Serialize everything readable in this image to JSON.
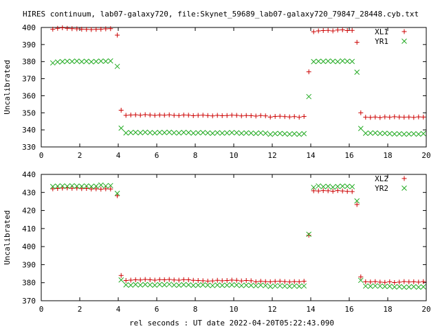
{
  "title": "HIRES continuum, lab07-galaxy720, file:Skynet_59689_lab07-galaxy720_79847_28448.cyb.txt",
  "xlabel": "rel seconds : UT date 2022-04-20T05:22:43.090",
  "colors": {
    "xl": "#cc0000",
    "yr": "#22aa22"
  },
  "chart_data": [
    {
      "type": "scatter",
      "ylabel": "Uncalibrated",
      "xlim": [
        0,
        20
      ],
      "ylim": [
        330,
        400
      ],
      "xticks": [
        0,
        2,
        4,
        6,
        8,
        10,
        12,
        14,
        16,
        18,
        20
      ],
      "yticks": [
        330,
        340,
        350,
        360,
        370,
        380,
        390,
        400
      ],
      "legend_position": "top-right",
      "series": [
        {
          "name": "XL1",
          "marker": "plus",
          "color": "#cc0000",
          "x": [
            0.6,
            0.85,
            1.1,
            1.35,
            1.6,
            1.85,
            2.1,
            2.35,
            2.6,
            2.85,
            3.1,
            3.35,
            3.6,
            3.95,
            4.15,
            4.4,
            4.65,
            4.9,
            5.15,
            5.4,
            5.65,
            5.9,
            6.15,
            6.4,
            6.65,
            6.9,
            7.15,
            7.4,
            7.65,
            7.9,
            8.15,
            8.4,
            8.65,
            8.9,
            9.15,
            9.4,
            9.65,
            9.9,
            10.15,
            10.4,
            10.65,
            10.9,
            11.15,
            11.4,
            11.65,
            11.9,
            12.15,
            12.4,
            12.65,
            12.9,
            13.15,
            13.4,
            13.65,
            13.9,
            14.15,
            14.4,
            14.65,
            14.9,
            15.15,
            15.4,
            15.65,
            15.9,
            16.15,
            16.4,
            16.6,
            16.85,
            17.1,
            17.35,
            17.6,
            17.85,
            18.1,
            18.35,
            18.6,
            18.85,
            19.1,
            19.35,
            19.6,
            19.85
          ],
          "y": [
            399,
            399.5,
            399.8,
            399.5,
            399.3,
            399.2,
            399,
            398.9,
            398.8,
            398.9,
            399,
            399.2,
            399.3,
            395.5,
            351.5,
            348.5,
            348.7,
            348.8,
            348.6,
            348.9,
            348.7,
            348.5,
            348.7,
            348.6,
            348.8,
            348.5,
            348.4,
            348.7,
            348.6,
            348.3,
            348.5,
            348.6,
            348.4,
            348.2,
            348.5,
            348.3,
            348.4,
            348.6,
            348.5,
            348.2,
            348.4,
            348.3,
            348.1,
            348.4,
            348.2,
            347.5,
            347.9,
            348,
            347.8,
            347.6,
            347.8,
            347.4,
            347.9,
            374,
            397.5,
            398,
            398.2,
            398.3,
            398,
            398.5,
            398.6,
            398.2,
            398.3,
            391.3,
            350,
            347.4,
            347.3,
            347.5,
            347.2,
            347.6,
            347.4,
            347.7,
            347.5,
            347.4,
            347.5,
            347.3,
            347.6,
            347.5
          ]
        },
        {
          "name": "YR1",
          "marker": "cross",
          "color": "#22aa22",
          "x": [
            0.6,
            0.85,
            1.1,
            1.35,
            1.6,
            1.85,
            2.1,
            2.35,
            2.6,
            2.85,
            3.1,
            3.35,
            3.6,
            3.95,
            4.15,
            4.4,
            4.65,
            4.9,
            5.15,
            5.4,
            5.65,
            5.9,
            6.15,
            6.4,
            6.65,
            6.9,
            7.15,
            7.4,
            7.65,
            7.9,
            8.15,
            8.4,
            8.65,
            8.9,
            9.15,
            9.4,
            9.65,
            9.9,
            10.15,
            10.4,
            10.65,
            10.9,
            11.15,
            11.4,
            11.65,
            11.9,
            12.15,
            12.4,
            12.65,
            12.9,
            13.15,
            13.4,
            13.65,
            13.9,
            14.15,
            14.4,
            14.65,
            14.9,
            15.15,
            15.4,
            15.65,
            15.9,
            16.15,
            16.4,
            16.6,
            16.85,
            17.1,
            17.35,
            17.6,
            17.85,
            18.1,
            18.35,
            18.6,
            18.85,
            19.1,
            19.35,
            19.6,
            19.85
          ],
          "y": [
            379.2,
            379.8,
            380,
            380.2,
            380.1,
            380.3,
            380,
            380.2,
            379.9,
            380.1,
            380.3,
            380.2,
            380.4,
            377.2,
            341,
            338.2,
            338.4,
            338.5,
            338.3,
            338.6,
            338.4,
            338.2,
            338.5,
            338.4,
            338.6,
            338.3,
            338.2,
            338.5,
            338.4,
            338.1,
            338.3,
            338.4,
            338.2,
            338,
            338.3,
            338.1,
            338.2,
            338.4,
            338.3,
            338,
            338.2,
            338.1,
            337.9,
            338.2,
            338,
            337.4,
            337.8,
            337.9,
            337.7,
            337.5,
            337.7,
            337.4,
            337.8,
            359.5,
            380,
            380.2,
            380.1,
            380.3,
            380.2,
            380,
            380.4,
            380.2,
            380.1,
            373.8,
            340.8,
            338,
            338.1,
            338.2,
            337.9,
            338,
            337.8,
            337.6,
            337.7,
            337.5,
            337.6,
            337.7,
            337.5,
            337.8
          ]
        }
      ]
    },
    {
      "type": "scatter",
      "ylabel": "Uncalibrated",
      "xlim": [
        0,
        20
      ],
      "ylim": [
        370,
        440
      ],
      "xticks": [
        0,
        2,
        4,
        6,
        8,
        10,
        12,
        14,
        16,
        18,
        20
      ],
      "yticks": [
        370,
        380,
        390,
        400,
        410,
        420,
        430,
        440
      ],
      "legend_position": "top-right",
      "series": [
        {
          "name": "XL2",
          "marker": "plus",
          "color": "#cc0000",
          "x": [
            0.6,
            0.85,
            1.1,
            1.35,
            1.6,
            1.85,
            2.1,
            2.35,
            2.6,
            2.85,
            3.1,
            3.35,
            3.6,
            3.95,
            4.15,
            4.4,
            4.65,
            4.9,
            5.15,
            5.4,
            5.65,
            5.9,
            6.15,
            6.4,
            6.65,
            6.9,
            7.15,
            7.4,
            7.65,
            7.9,
            8.15,
            8.4,
            8.65,
            8.9,
            9.15,
            9.4,
            9.65,
            9.9,
            10.15,
            10.4,
            10.65,
            10.9,
            11.15,
            11.4,
            11.65,
            11.9,
            12.15,
            12.4,
            12.65,
            12.9,
            13.15,
            13.4,
            13.65,
            13.9,
            14.15,
            14.4,
            14.65,
            14.9,
            15.15,
            15.4,
            15.65,
            15.9,
            16.15,
            16.4,
            16.6,
            16.85,
            17.1,
            17.35,
            17.6,
            17.85,
            18.1,
            18.35,
            18.6,
            18.85,
            19.1,
            19.35,
            19.6,
            19.85
          ],
          "y": [
            432,
            432.2,
            432.4,
            432.5,
            432.3,
            432.4,
            432.1,
            432.2,
            431.9,
            432,
            431.8,
            432,
            431.9,
            428.2,
            384,
            381.2,
            381.4,
            381.6,
            381.5,
            381.8,
            381.6,
            381.4,
            381.7,
            381.6,
            381.8,
            381.5,
            381.4,
            381.7,
            381.6,
            381.3,
            381.2,
            381.1,
            380.9,
            381,
            381.3,
            381.1,
            381.2,
            381.4,
            381.3,
            381,
            381.2,
            381.1,
            380.5,
            380.8,
            380.6,
            380.5,
            380.7,
            380.8,
            380.6,
            380.4,
            380.6,
            380.5,
            380.8,
            406.3,
            430.9,
            430.8,
            431,
            430.9,
            430.7,
            431,
            430.8,
            430.6,
            430.5,
            423.3,
            383.2,
            380.5,
            380.4,
            380.6,
            380.3,
            380.2,
            380.5,
            380.1,
            380.3,
            380.6,
            380.4,
            380.5,
            380.3,
            380.6
          ]
        },
        {
          "name": "YR2",
          "marker": "cross",
          "color": "#22aa22",
          "x": [
            0.6,
            0.85,
            1.1,
            1.35,
            1.6,
            1.85,
            2.1,
            2.35,
            2.6,
            2.85,
            3.1,
            3.35,
            3.6,
            3.95,
            4.15,
            4.4,
            4.65,
            4.9,
            5.15,
            5.4,
            5.65,
            5.9,
            6.15,
            6.4,
            6.65,
            6.9,
            7.15,
            7.4,
            7.65,
            7.9,
            8.15,
            8.4,
            8.65,
            8.9,
            9.15,
            9.4,
            9.65,
            9.9,
            10.15,
            10.4,
            10.65,
            10.9,
            11.15,
            11.4,
            11.65,
            11.9,
            12.15,
            12.4,
            12.65,
            12.9,
            13.15,
            13.4,
            13.65,
            13.9,
            14.15,
            14.4,
            14.65,
            14.9,
            15.15,
            15.4,
            15.65,
            15.9,
            16.15,
            16.4,
            16.6,
            16.85,
            17.1,
            17.35,
            17.6,
            17.85,
            18.1,
            18.35,
            18.6,
            18.85,
            19.1,
            19.35,
            19.6,
            19.85
          ],
          "y": [
            433.3,
            433.5,
            433.6,
            433.4,
            433.7,
            433.5,
            433.4,
            433.6,
            433.3,
            433.5,
            434.1,
            433.6,
            433.8,
            429.5,
            381.5,
            378.8,
            378.6,
            379,
            378.7,
            379,
            378.8,
            378.6,
            379,
            378.8,
            379.1,
            378.7,
            378.6,
            378.9,
            378.8,
            378.5,
            378.6,
            378.8,
            378.6,
            378.4,
            378.7,
            378.5,
            378.6,
            378.8,
            378.7,
            378.4,
            378.6,
            378.5,
            378.3,
            378.6,
            378.4,
            377.9,
            378.2,
            378.3,
            378.1,
            378,
            378.2,
            378,
            378.2,
            406.8,
            432.8,
            433.6,
            433.2,
            433.4,
            432.9,
            433.3,
            433.5,
            433.4,
            433.2,
            425.3,
            381.3,
            378.1,
            378,
            378.2,
            378.1,
            377.9,
            378,
            377.6,
            377.8,
            377.5,
            377.6,
            377.8,
            377.5,
            377.7
          ]
        }
      ]
    }
  ]
}
